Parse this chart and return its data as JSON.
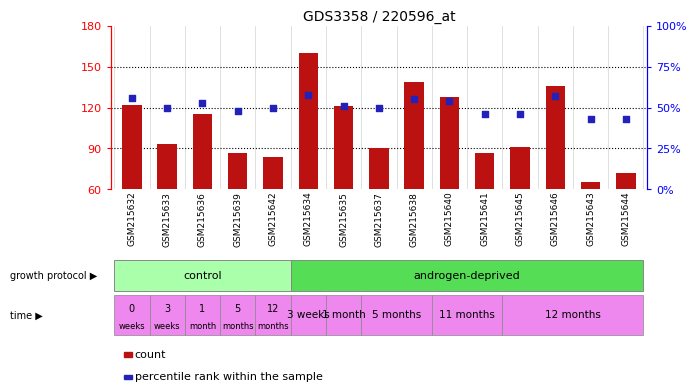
{
  "title": "GDS3358 / 220596_at",
  "samples": [
    "GSM215632",
    "GSM215633",
    "GSM215636",
    "GSM215639",
    "GSM215642",
    "GSM215634",
    "GSM215635",
    "GSM215637",
    "GSM215638",
    "GSM215640",
    "GSM215641",
    "GSM215645",
    "GSM215646",
    "GSM215643",
    "GSM215644"
  ],
  "counts": [
    122,
    93,
    115,
    87,
    84,
    160,
    121,
    90,
    139,
    128,
    87,
    91,
    136,
    65,
    72
  ],
  "percentiles": [
    56,
    50,
    53,
    48,
    50,
    58,
    51,
    50,
    55,
    54,
    46,
    46,
    57,
    43,
    43
  ],
  "ylim_left": [
    60,
    180
  ],
  "ylim_right": [
    0,
    100
  ],
  "yticks_left": [
    60,
    90,
    120,
    150,
    180
  ],
  "yticks_right": [
    0,
    25,
    50,
    75,
    100
  ],
  "bar_color": "#bb1111",
  "dot_color": "#2222bb",
  "control_color": "#aaffaa",
  "androgen_color": "#55dd55",
  "time_color": "#ee88ee",
  "control_label": "control",
  "androgen_label": "androgen-deprived",
  "growth_protocol_label": "growth protocol",
  "time_label": "time",
  "legend_count": "count",
  "legend_percentile": "percentile rank within the sample",
  "n_control": 5,
  "n_androgen": 10,
  "bar_width": 0.55,
  "androgen_groups": [
    [
      "3 weeks",
      1
    ],
    [
      "1 month",
      1
    ],
    [
      "5 months",
      2
    ],
    [
      "11 months",
      2
    ],
    [
      "12 months",
      4
    ]
  ],
  "time_labels_control": [
    [
      "0",
      "weeks"
    ],
    [
      "3",
      "weeks"
    ],
    [
      "1",
      "month"
    ],
    [
      "5",
      "months"
    ],
    [
      "12",
      "months"
    ]
  ]
}
